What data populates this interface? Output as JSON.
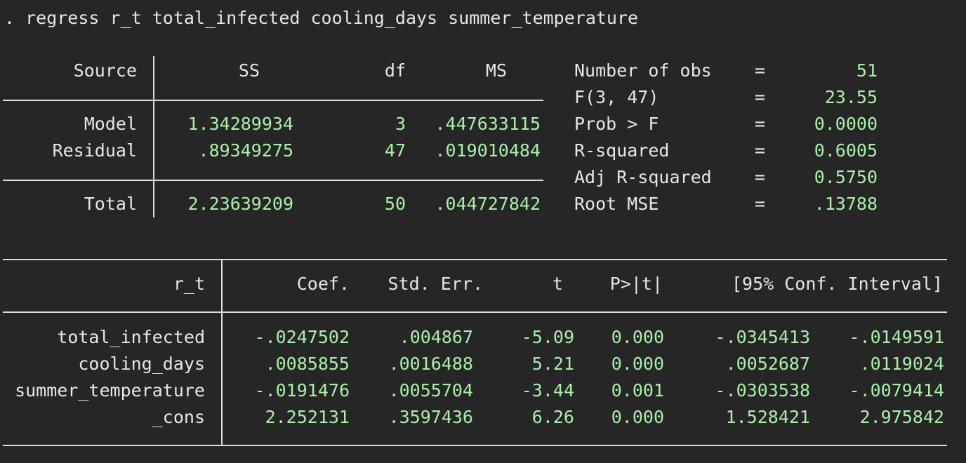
{
  "command": ". regress r_t total_infected cooling_days summer_temperature",
  "anova": {
    "headers": {
      "source": "Source",
      "ss": "SS",
      "df": "df",
      "ms": "MS"
    },
    "rows": [
      {
        "source": "Model",
        "ss": "1.34289934",
        "df": "3",
        "ms": ".447633115"
      },
      {
        "source": "Residual",
        "ss": ".89349275",
        "df": "47",
        "ms": ".019010484"
      },
      {
        "source": "Total",
        "ss": "2.23639209",
        "df": "50",
        "ms": ".044727842"
      }
    ]
  },
  "stats": [
    {
      "label": "Number of obs",
      "eq": "=",
      "value": "51"
    },
    {
      "label": "F(3, 47)",
      "eq": "=",
      "value": "23.55"
    },
    {
      "label": "Prob > F",
      "eq": "=",
      "value": "0.0000"
    },
    {
      "label": "R-squared",
      "eq": "=",
      "value": "0.6005"
    },
    {
      "label": "Adj R-squared",
      "eq": "=",
      "value": "0.5750"
    },
    {
      "label": "Root MSE",
      "eq": "=",
      "value": ".13788"
    }
  ],
  "coef_table": {
    "headers": {
      "depvar": "r_t",
      "coef": "Coef.",
      "se": "Std. Err.",
      "t": "t",
      "p": "P>|t|",
      "ci": "[95% Conf. Interval]"
    },
    "rows": [
      {
        "var": "total_infected",
        "coef": "-.0247502",
        "se": ".004867",
        "t": "-5.09",
        "p": "0.000",
        "lo": "-.0345413",
        "hi": "-.0149591"
      },
      {
        "var": "cooling_days",
        "coef": ".0085855",
        "se": ".0016488",
        "t": "5.21",
        "p": "0.000",
        "lo": ".0052687",
        "hi": ".0119024"
      },
      {
        "var": "summer_temperature",
        "coef": "-.0191476",
        "se": ".0055704",
        "t": "-3.44",
        "p": "0.001",
        "lo": "-.0303538",
        "hi": "-.0079414"
      },
      {
        "var": "_cons",
        "coef": "2.252131",
        "se": ".3597436",
        "t": "6.26",
        "p": "0.000",
        "lo": "1.528421",
        "hi": "2.975842"
      }
    ]
  }
}
